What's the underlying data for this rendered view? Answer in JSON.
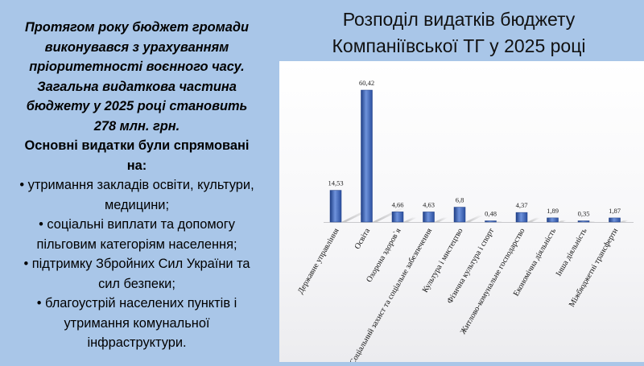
{
  "left": {
    "intro_lines": [
      "Протягом року бюджет громади",
      "виконувався з урахуванням",
      "пріоритетності воєнного часу.",
      "Загальна видаткова частина",
      "бюджету у 2025 році становить",
      "278 млн. грн."
    ],
    "subhead_lines": [
      "Основні видатки були спрямовані",
      "на:"
    ],
    "bullets": [
      [
        "• утримання закладів освіти, культури,",
        "медицини;"
      ],
      [
        "• соціальні виплати та допомогу",
        "пільговим категоріям населення;"
      ],
      [
        "• підтримку Збройних Сил України та",
        "сил безпеки;"
      ],
      [
        "• благоустрій населених пунктів і",
        "утримання комунальної",
        "інфраструктури."
      ]
    ]
  },
  "title_lines": [
    "Розподіл видатків бюджету",
    "Компаніївської ТГ у 2025 році"
  ],
  "colors": {
    "background": "#a9c6e8",
    "bar": "#3a62b8",
    "bar_dark": "#1f3f86",
    "bar_light": "#6f93dc"
  },
  "chart_data": {
    "type": "bar",
    "title": "Розподіл видатків бюджету Компаніївської ТГ у 2025 році",
    "categories": [
      "Державне управління",
      "Освіта",
      "Охорона здоров`я",
      "Соціальний захист та соціальне забезпечення",
      "Культура і мистецтво",
      "Фізична культура і спорт",
      "Житлово-комунальне господарство",
      "Економічна діяльність",
      "Інша діяльність",
      "Міжбюджетні трансферти"
    ],
    "values": [
      14.53,
      60.42,
      4.66,
      4.63,
      6.8,
      0.48,
      4.37,
      1.89,
      0.35,
      1.87
    ],
    "value_labels": [
      "14,53",
      "60,42",
      "4,66",
      "4,63",
      "6,8",
      "0,48",
      "4,37",
      "1,89",
      "0,35",
      "1,87"
    ],
    "ylim": [
      0,
      60.42
    ],
    "grid": false,
    "legend": "none",
    "data_labels": true
  }
}
